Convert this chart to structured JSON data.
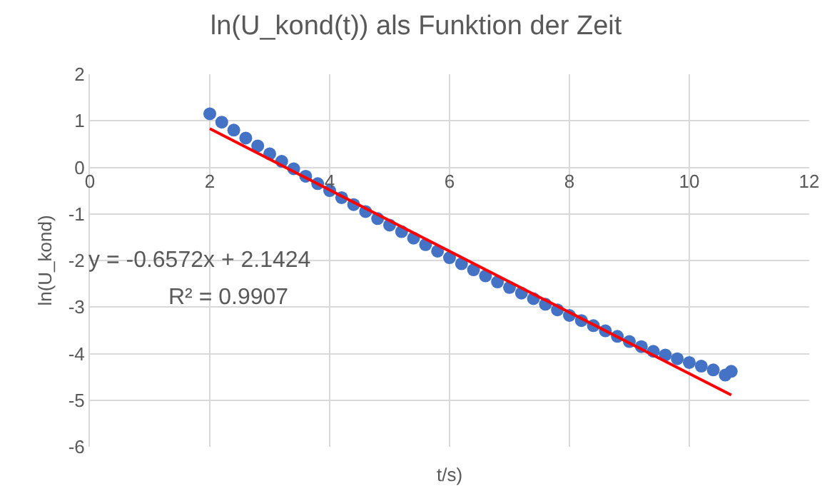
{
  "chart_data": {
    "type": "scatter",
    "title": "ln(U_kond(t)) als Funktion der Zeit",
    "xlabel": "t/s)",
    "ylabel": "ln(U_kond)",
    "annotations": [
      "y = -0.6572x + 2.1424",
      "R² = 0.9907"
    ],
    "xlim": [
      0,
      12
    ],
    "xticks": [
      0,
      2,
      4,
      6,
      8,
      10,
      12
    ],
    "ylim": [
      -6,
      2
    ],
    "yticks": [
      -6,
      -5,
      -4,
      -3,
      -2,
      -1,
      0,
      1,
      2
    ],
    "grid": true,
    "marker": "circle",
    "series": [
      {
        "color": "#4472c4",
        "x": [
          2,
          2.2,
          2.4,
          2.6,
          2.8,
          3,
          3.2,
          3.4,
          3.6,
          3.8,
          4,
          4.2,
          4.4,
          4.6,
          4.8,
          5,
          5.2,
          5.4,
          5.6,
          5.8,
          6,
          6.2,
          6.4,
          6.6,
          6.8,
          7,
          7.2,
          7.4,
          7.6,
          7.8,
          8,
          8.2,
          8.4,
          8.6,
          8.8,
          9,
          9.2,
          9.4,
          9.6,
          9.8,
          10,
          10.2,
          10.4,
          10.6,
          10.7
        ],
        "values": [
          1.15,
          0.97,
          0.8,
          0.63,
          0.46,
          0.29,
          0.13,
          -0.03,
          -0.19,
          -0.35,
          -0.5,
          -0.65,
          -0.8,
          -0.95,
          -1.1,
          -1.24,
          -1.38,
          -1.52,
          -1.66,
          -1.8,
          -1.94,
          -2.07,
          -2.2,
          -2.33,
          -2.46,
          -2.58,
          -2.7,
          -2.82,
          -2.94,
          -3.06,
          -3.18,
          -3.29,
          -3.4,
          -3.51,
          -3.63,
          -3.74,
          -3.85,
          -3.95,
          -4.03,
          -4.11,
          -4.19,
          -4.27,
          -4.35,
          -4.46,
          -4.38
        ]
      },
      {
        "type": "line",
        "color": "#ff0000",
        "marker": "none",
        "x": [
          2,
          10.7
        ],
        "values": [
          0.83,
          -4.89
        ]
      }
    ]
  }
}
